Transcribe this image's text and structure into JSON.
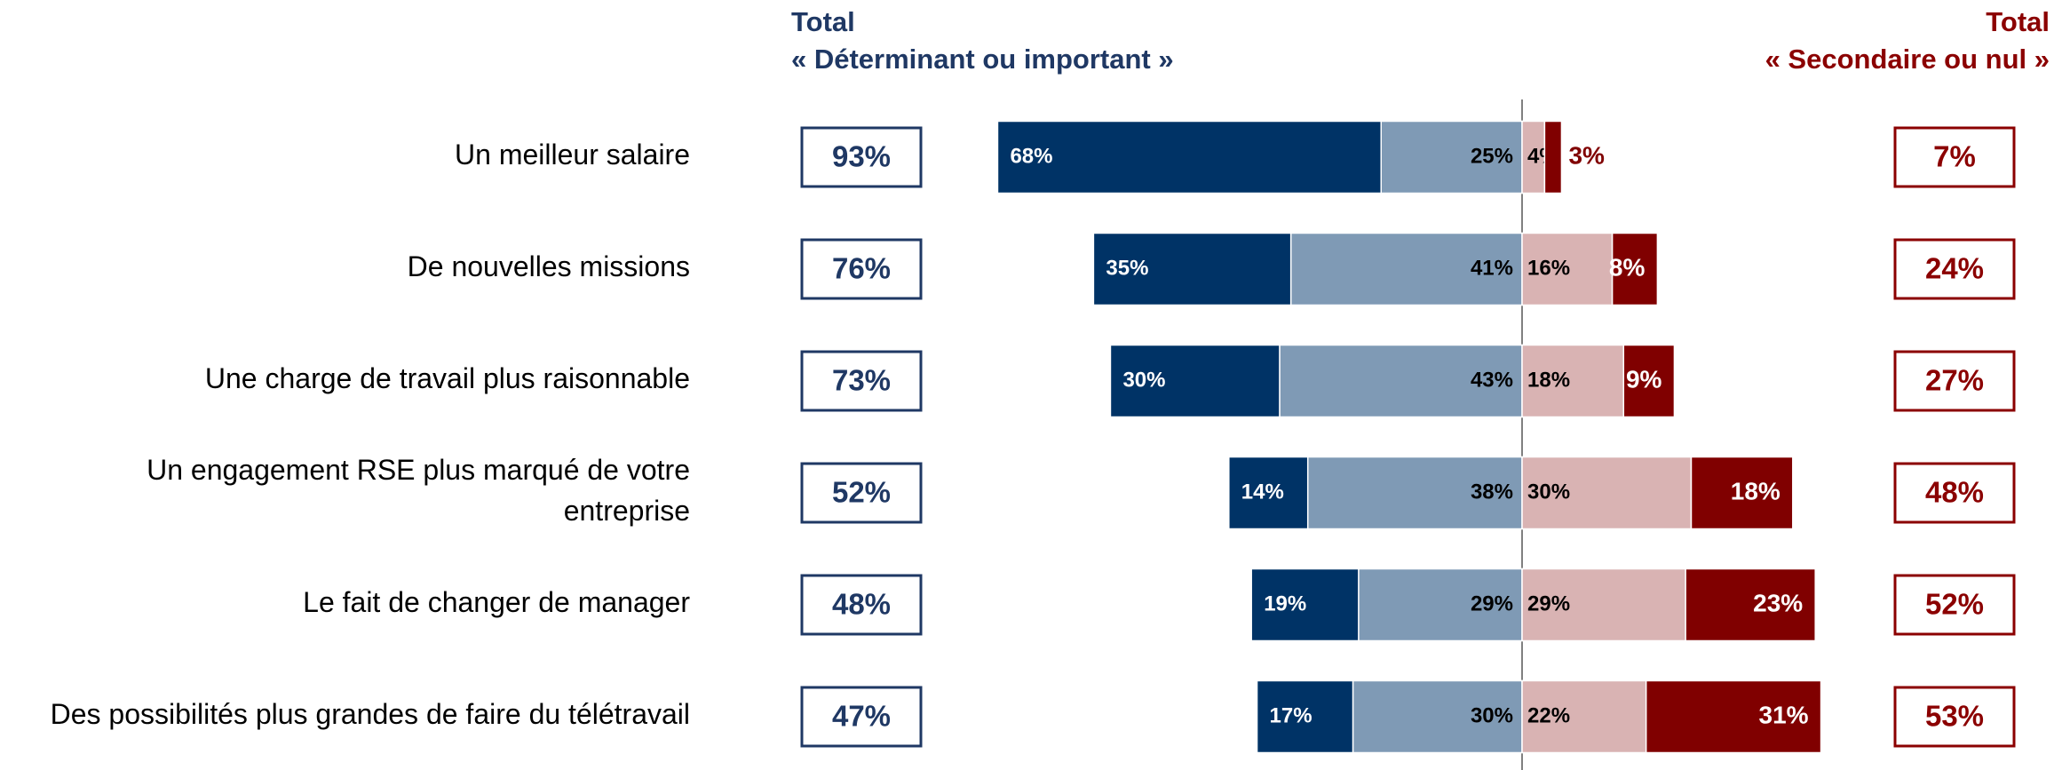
{
  "chart_data": {
    "type": "diverging_bar",
    "left_header": [
      "Total",
      "« Déterminant ou important »"
    ],
    "right_header": [
      "Total",
      "« Secondaire ou nul »"
    ],
    "categories": [
      "Un meilleur salaire",
      "De nouvelles missions",
      "Une charge de travail plus raisonnable",
      "Un engagement RSE plus marqué de votre\nentreprise",
      "Le fait de changer de manager",
      "Des possibilités plus grandes de faire du télétravail"
    ],
    "series": [
      {
        "color": "#003366",
        "side": "left",
        "values": [
          68,
          35,
          30,
          14,
          19,
          17
        ],
        "value_labels": [
          "68%",
          "35%",
          "30%",
          "14%",
          "19%",
          "17%"
        ]
      },
      {
        "color": "#7f9ab5",
        "side": "left",
        "values": [
          25,
          41,
          43,
          38,
          29,
          30
        ],
        "value_labels": [
          "25%",
          "41%",
          "43%",
          "38%",
          "29%",
          "30%"
        ]
      },
      {
        "color": "#d9b3b3",
        "side": "right",
        "values": [
          4,
          16,
          18,
          30,
          29,
          22
        ],
        "value_labels": [
          "4%",
          "16%",
          "18%",
          "30%",
          "29%",
          "22%"
        ]
      },
      {
        "color": "#800000",
        "side": "right",
        "values": [
          3,
          8,
          9,
          18,
          23,
          31
        ],
        "value_labels": [
          "3%",
          "8%",
          "9%",
          "18%",
          "23%",
          "31%"
        ]
      }
    ],
    "left_totals": {
      "color": "#1f3864",
      "values": [
        93,
        76,
        73,
        52,
        48,
        47
      ],
      "value_labels": [
        "93%",
        "76%",
        "73%",
        "52%",
        "48%",
        "47%"
      ]
    },
    "right_totals": {
      "color": "#8b0000",
      "values": [
        7,
        24,
        27,
        48,
        52,
        53
      ],
      "value_labels": [
        "7%",
        "24%",
        "27%",
        "48%",
        "52%",
        "53%"
      ]
    }
  }
}
